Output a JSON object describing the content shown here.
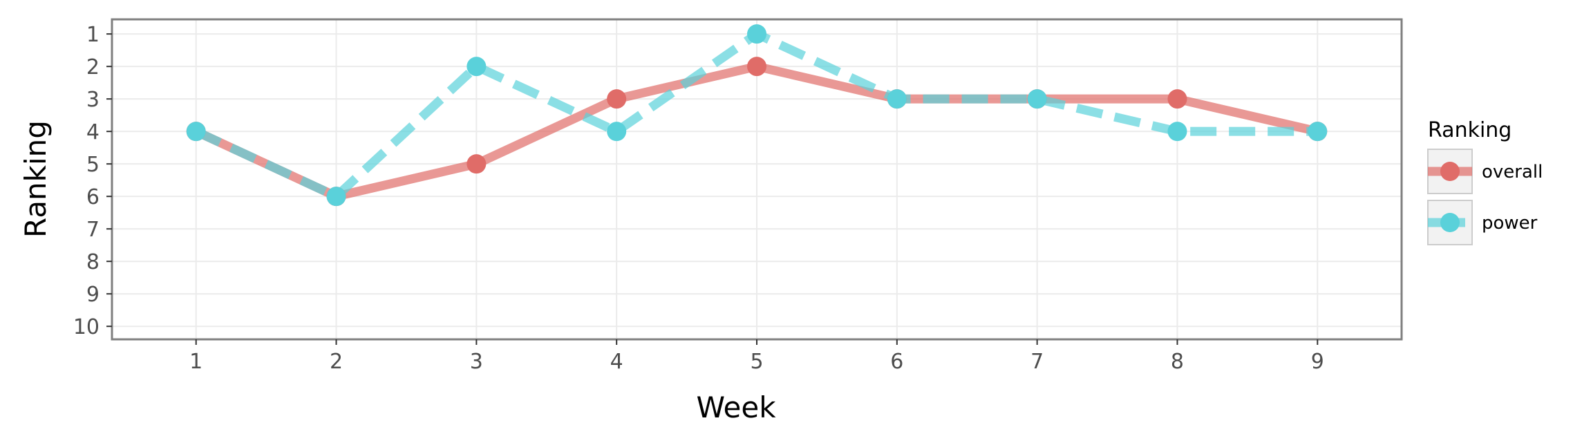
{
  "chart_data": {
    "type": "line",
    "xlabel": "Week",
    "ylabel": "Ranking",
    "x": [
      1,
      2,
      3,
      4,
      5,
      6,
      7,
      8,
      9
    ],
    "xlim": [
      0.4,
      9.6
    ],
    "ylim": [
      10.4,
      0.55
    ],
    "y_reversed": true,
    "x_ticks": [
      1,
      2,
      3,
      4,
      5,
      6,
      7,
      8,
      9
    ],
    "y_ticks": [
      1,
      2,
      3,
      4,
      5,
      6,
      7,
      8,
      9,
      10
    ],
    "grid": true,
    "legend_title": "Ranking",
    "legend_position": "right",
    "series": [
      {
        "name": "overall",
        "values": [
          4,
          6,
          5,
          3,
          2,
          3,
          3,
          3,
          4
        ],
        "color": "#e06c68",
        "line_style": "solid"
      },
      {
        "name": "power",
        "values": [
          4,
          6,
          2,
          4,
          1,
          3,
          3,
          4,
          4
        ],
        "color": "#5ad1da",
        "line_style": "dashed"
      }
    ]
  }
}
